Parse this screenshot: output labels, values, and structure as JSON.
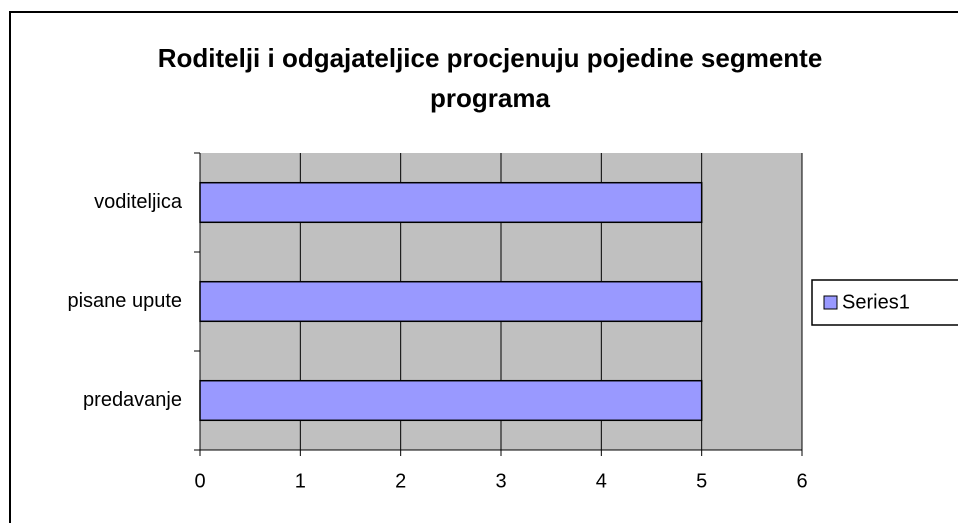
{
  "chart_data": {
    "type": "hbar",
    "title": "Roditelji i odgajateljice procjenuju pojedine segmente programa",
    "categories": [
      "predavanje",
      "pisane upute",
      "voditeljica"
    ],
    "series": [
      {
        "name": "Series1",
        "color": "#9999ff",
        "values": [
          5,
          5,
          5
        ]
      }
    ],
    "xlim": [
      0,
      6
    ],
    "xticks": [
      0,
      1,
      2,
      3,
      4,
      5,
      6
    ],
    "grid": true,
    "legend": "right"
  }
}
